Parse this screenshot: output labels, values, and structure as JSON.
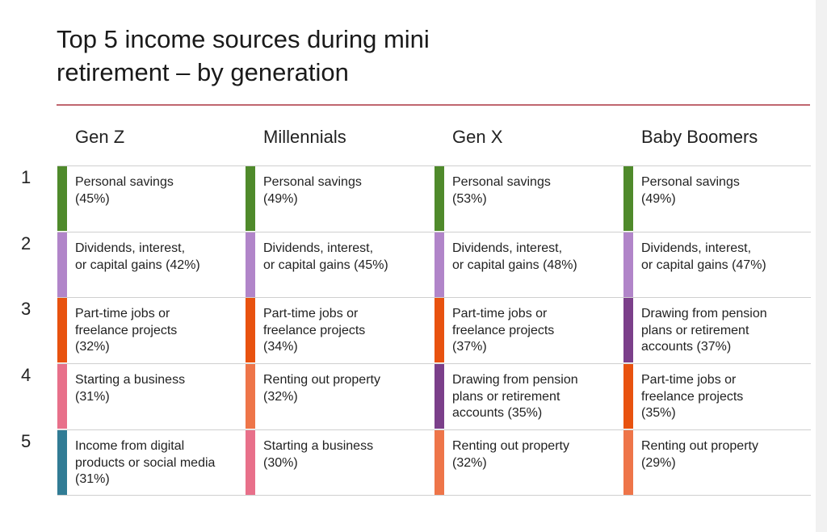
{
  "title": "Top 5 income sources during mini\nretirement – by generation",
  "generations": [
    "Gen Z",
    "Millennials",
    "Gen X",
    "Baby Boomers"
  ],
  "ranks": [
    "1",
    "2",
    "3",
    "4",
    "5"
  ],
  "colors": {
    "personal_savings": "#4f8a2b",
    "dividends": "#b185c9",
    "part_time": "#e8520f",
    "business": "#e8708a",
    "digital": "#317c95",
    "pension": "#7b3f8a",
    "renting": "#ee7549"
  },
  "columns": [
    [
      {
        "text": "Personal savings\n(45%)",
        "cat": "personal_savings"
      },
      {
        "text": "Dividends, interest,\nor capital gains (42%)",
        "cat": "dividends"
      },
      {
        "text": "Part-time jobs or\nfreelance projects\n(32%)",
        "cat": "part_time"
      },
      {
        "text": "Starting a business\n(31%)",
        "cat": "business"
      },
      {
        "text": "Income from digital\nproducts or social media\n(31%)",
        "cat": "digital"
      }
    ],
    [
      {
        "text": "Personal savings\n(49%)",
        "cat": "personal_savings"
      },
      {
        "text": "Dividends, interest,\nor capital gains (45%)",
        "cat": "dividends"
      },
      {
        "text": "Part-time jobs or\nfreelance projects\n(34%)",
        "cat": "part_time"
      },
      {
        "text": "Renting out property\n(32%)",
        "cat": "renting"
      },
      {
        "text": "Starting a business\n(30%)",
        "cat": "business"
      }
    ],
    [
      {
        "text": "Personal savings\n(53%)",
        "cat": "personal_savings"
      },
      {
        "text": "Dividends, interest,\nor capital gains (48%)",
        "cat": "dividends"
      },
      {
        "text": "Part-time jobs or\nfreelance projects\n(37%)",
        "cat": "part_time"
      },
      {
        "text": "Drawing from pension\nplans or retirement\naccounts (35%)",
        "cat": "pension"
      },
      {
        "text": "Renting out property\n(32%)",
        "cat": "renting"
      }
    ],
    [
      {
        "text": "Personal savings\n(49%)",
        "cat": "personal_savings"
      },
      {
        "text": "Dividends, interest,\nor capital gains (47%)",
        "cat": "dividends"
      },
      {
        "text": "Drawing from pension\nplans or retirement\naccounts (37%)",
        "cat": "pension"
      },
      {
        "text": "Part-time jobs or\nfreelance projects\n(35%)",
        "cat": "part_time"
      },
      {
        "text": "Renting out property\n(29%)",
        "cat": "renting"
      }
    ]
  ]
}
